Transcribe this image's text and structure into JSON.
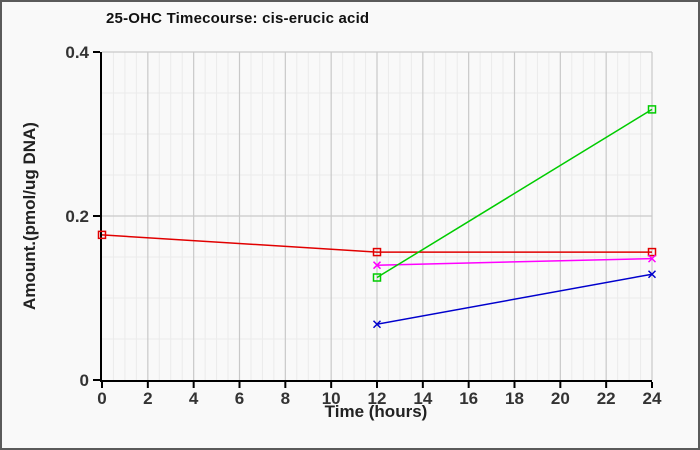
{
  "chart_data": {
    "type": "line",
    "title": "25-OHC Timecourse: cis-erucic acid",
    "xlabel": "Time (hours)",
    "ylabel": "Amount.(pmol/ug DNA)",
    "xlim": [
      0,
      24
    ],
    "ylim": [
      0,
      0.4
    ],
    "x_major_ticks": [
      0,
      2,
      4,
      6,
      8,
      10,
      12,
      14,
      16,
      18,
      20,
      22,
      24
    ],
    "x_tick_labels": [
      "0",
      "2",
      "4",
      "6",
      "8",
      "10",
      "12",
      "14",
      "16",
      "18",
      "20",
      "22",
      "24"
    ],
    "y_major_ticks": [
      0,
      0.2,
      0.4
    ],
    "y_tick_labels": [
      "0",
      "0.2",
      "0.4"
    ],
    "x_minor_step": 0.5,
    "y_minor_step": 0.05,
    "grid": "major-and-minor",
    "legend": "none",
    "series": [
      {
        "name": "red-squares",
        "color": "#e10000",
        "marker": "square",
        "points": [
          [
            0,
            0.177
          ],
          [
            12,
            0.156
          ],
          [
            24,
            0.156
          ]
        ]
      },
      {
        "name": "magenta-x",
        "color": "#ff00ff",
        "marker": "x",
        "points": [
          [
            12,
            0.14
          ],
          [
            24,
            0.148
          ]
        ]
      },
      {
        "name": "blue-x",
        "color": "#0000cd",
        "marker": "x",
        "points": [
          [
            12,
            0.068
          ],
          [
            24,
            0.129
          ]
        ]
      },
      {
        "name": "green-squares",
        "color": "#00cc00",
        "marker": "square",
        "points": [
          [
            12,
            0.125
          ],
          [
            24,
            0.33
          ]
        ]
      }
    ],
    "colors": {
      "background": "#f9f9f9",
      "frame_border": "#5b5b5b",
      "major_grid": "#c9c9c9",
      "minor_grid": "#ebebeb",
      "axis_spine": "#000000",
      "tick_label": "#333333"
    }
  }
}
